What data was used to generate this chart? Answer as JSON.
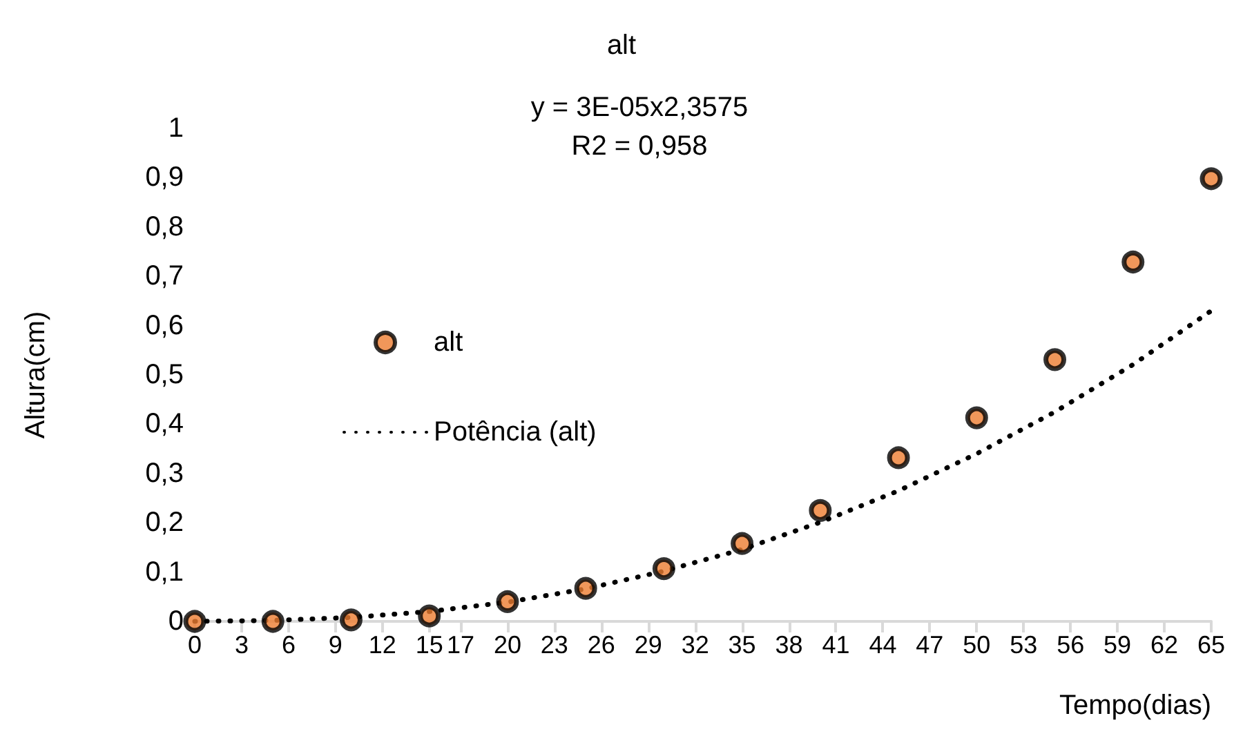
{
  "chart_data": {
    "type": "scatter",
    "title": "alt",
    "xlabel": "Tempo(dias)",
    "ylabel": "Altura(cm)",
    "annotations": [
      "y = 3E-05x2,3575",
      "R2 = 0,958"
    ],
    "x": [
      0,
      5,
      10,
      15,
      20,
      25,
      30,
      35,
      40,
      45,
      50,
      55,
      60,
      65
    ],
    "series": [
      {
        "name": "alt",
        "color": "#ed7d31",
        "values": [
          0,
          0,
          0.003,
          0.011,
          0.04,
          0.067,
          0.107,
          0.158,
          0.225,
          0.332,
          0.413,
          0.531,
          0.729,
          0.898
        ],
        "marker": "circle"
      },
      {
        "name": "Potência (alt)",
        "type": "line",
        "color": "#000000",
        "line_style": "dotted",
        "marker": "none",
        "values": [
          0,
          0.002,
          0.008,
          0.02,
          0.039,
          0.066,
          0.102,
          0.146,
          0.201,
          0.265,
          0.34,
          0.425,
          0.521,
          0.63
        ]
      }
    ],
    "xlim": [
      0,
      65
    ],
    "xticks": [
      0,
      3,
      6,
      9,
      12,
      15,
      17,
      20,
      23,
      26,
      29,
      32,
      35,
      38,
      41,
      44,
      47,
      50,
      53,
      56,
      59,
      62,
      65
    ],
    "ylim": [
      0,
      1
    ],
    "yticks": [
      0,
      {
        "value": 0.1,
        "label": "0,1"
      },
      {
        "value": 0.2,
        "label": "0,2"
      },
      {
        "value": 0.3,
        "label": "0,3"
      },
      {
        "value": 0.4,
        "label": "0,4"
      },
      {
        "value": 0.5,
        "label": "0,5"
      },
      {
        "value": 0.6,
        "label": "0,6"
      },
      {
        "value": 0.7,
        "label": "0,7"
      },
      {
        "value": 0.8,
        "label": "0,8"
      },
      {
        "value": 0.9,
        "label": "0,9"
      },
      1
    ],
    "grid": false,
    "legend": "left"
  }
}
